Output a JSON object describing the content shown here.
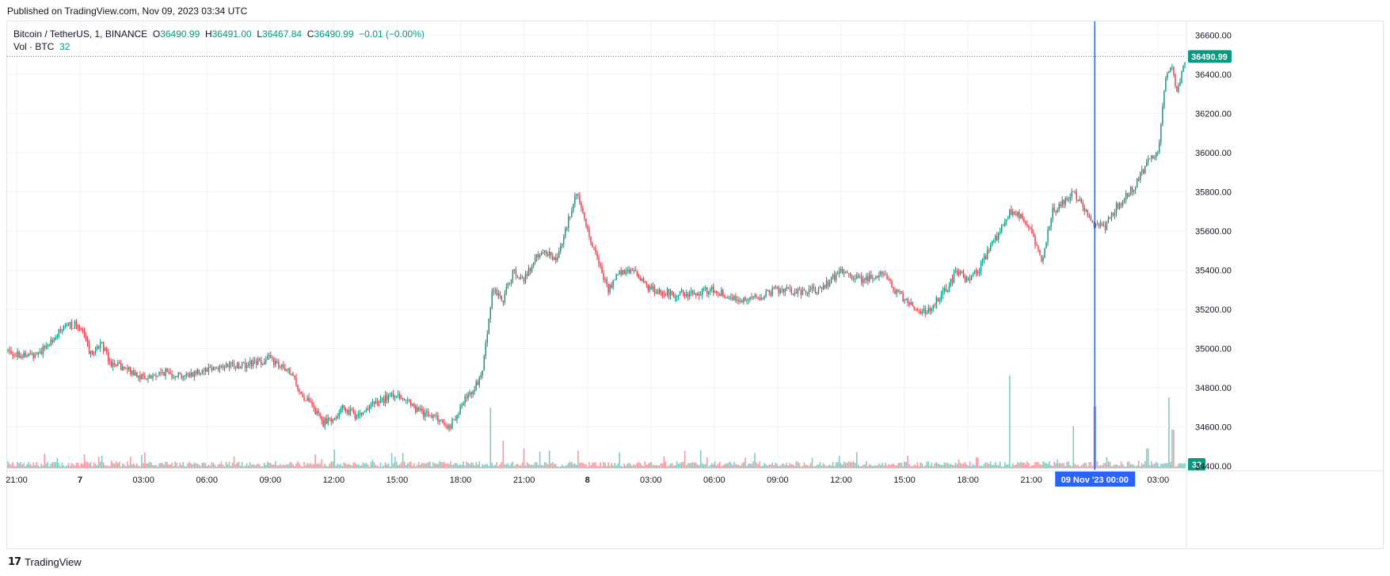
{
  "header": {
    "published": "Published on TradingView.com, Nov 09, 2023 03:34 UTC"
  },
  "legend": {
    "symbol": "Bitcoin / TetherUS, 1, BINANCE",
    "o_label": "O",
    "o_value": "36490.99",
    "h_label": "H",
    "h_value": "36491.00",
    "l_label": "L",
    "l_value": "36467.84",
    "c_label": "C",
    "c_value": "36490.99",
    "change": "−0.01 (−0.00%)",
    "vol_label": "Vol · BTC",
    "vol_value": "32"
  },
  "footer": {
    "brand": "TradingView",
    "logo_mark": "17"
  },
  "colors": {
    "up": "#089981",
    "down": "#f23645",
    "crosshair": "#2962ff",
    "grid": "#f0f3fa"
  },
  "chart_data": {
    "type": "candlestick",
    "y_ticks": [
      "36600.00",
      "36400.00",
      "36200.00",
      "36000.00",
      "35800.00",
      "35600.00",
      "35400.00",
      "35200.00",
      "35000.00",
      "34800.00",
      "34600.00",
      "34400.00"
    ],
    "ylim": [
      34380,
      36670
    ],
    "x_ticks": [
      "21:00",
      "7",
      "03:00",
      "06:00",
      "09:00",
      "12:00",
      "15:00",
      "18:00",
      "21:00",
      "8",
      "03:00",
      "06:00",
      "09:00",
      "12:00",
      "15:00",
      "18:00",
      "21:00",
      "03:00"
    ],
    "x_tick_hours": [
      0,
      3,
      6,
      9,
      12,
      15,
      18,
      21,
      24,
      27,
      30,
      33,
      36,
      39,
      42,
      45,
      48,
      54
    ],
    "x_range_hours": [
      -0.45,
      55.3
    ],
    "last_price_label": "36490.99",
    "last_price": 36490.99,
    "crosshair_label": "09 Nov '23   00:00",
    "crosshair_hour": 51,
    "volume_label": "32",
    "price_path": [
      [
        -0.45,
        34990
      ],
      [
        0.5,
        34960
      ],
      [
        1.2,
        34990
      ],
      [
        2.0,
        35080
      ],
      [
        2.5,
        35120
      ],
      [
        3.0,
        35120
      ],
      [
        3.5,
        34970
      ],
      [
        4.0,
        35030
      ],
      [
        4.5,
        34920
      ],
      [
        5.0,
        34900
      ],
      [
        5.5,
        34880
      ],
      [
        6.0,
        34850
      ],
      [
        6.5,
        34860
      ],
      [
        7.0,
        34880
      ],
      [
        8.0,
        34860
      ],
      [
        9.0,
        34900
      ],
      [
        10.0,
        34910
      ],
      [
        11.0,
        34920
      ],
      [
        12.0,
        34950
      ],
      [
        12.5,
        34900
      ],
      [
        13.0,
        34870
      ],
      [
        13.5,
        34760
      ],
      [
        14.0,
        34700
      ],
      [
        14.5,
        34620
      ],
      [
        15.0,
        34650
      ],
      [
        15.5,
        34700
      ],
      [
        16.0,
        34660
      ],
      [
        17.0,
        34720
      ],
      [
        18.0,
        34770
      ],
      [
        18.5,
        34730
      ],
      [
        19.0,
        34680
      ],
      [
        20.0,
        34640
      ],
      [
        20.5,
        34600
      ],
      [
        21.0,
        34700
      ],
      [
        21.5,
        34780
      ],
      [
        22.0,
        34850
      ],
      [
        22.5,
        35300
      ],
      [
        23.0,
        35250
      ],
      [
        23.5,
        35400
      ],
      [
        24.0,
        35350
      ],
      [
        24.5,
        35450
      ],
      [
        25.0,
        35500
      ],
      [
        25.5,
        35450
      ],
      [
        26.0,
        35620
      ],
      [
        26.5,
        35800
      ],
      [
        27.0,
        35600
      ],
      [
        27.5,
        35450
      ],
      [
        28.0,
        35300
      ],
      [
        28.5,
        35380
      ],
      [
        29.0,
        35400
      ],
      [
        29.5,
        35360
      ],
      [
        30.0,
        35300
      ],
      [
        31.0,
        35280
      ],
      [
        32.0,
        35280
      ],
      [
        33.0,
        35300
      ],
      [
        34.0,
        35250
      ],
      [
        35.0,
        35260
      ],
      [
        36.0,
        35300
      ],
      [
        37.0,
        35290
      ],
      [
        38.0,
        35300
      ],
      [
        38.5,
        35350
      ],
      [
        39.0,
        35400
      ],
      [
        40.0,
        35350
      ],
      [
        41.0,
        35380
      ],
      [
        41.5,
        35300
      ],
      [
        42.0,
        35250
      ],
      [
        43.0,
        35180
      ],
      [
        43.5,
        35250
      ],
      [
        44.0,
        35300
      ],
      [
        44.5,
        35400
      ],
      [
        45.0,
        35350
      ],
      [
        45.5,
        35400
      ],
      [
        46.0,
        35500
      ],
      [
        46.5,
        35600
      ],
      [
        47.0,
        35700
      ],
      [
        47.5,
        35680
      ],
      [
        48.0,
        35600
      ],
      [
        48.5,
        35450
      ],
      [
        49.0,
        35700
      ],
      [
        49.5,
        35750
      ],
      [
        50.0,
        35800
      ],
      [
        50.5,
        35720
      ],
      [
        51.0,
        35620
      ],
      [
        51.5,
        35620
      ],
      [
        52.0,
        35720
      ],
      [
        52.5,
        35780
      ],
      [
        53.0,
        35850
      ],
      [
        53.5,
        35950
      ],
      [
        54.0,
        36000
      ],
      [
        54.3,
        36350
      ],
      [
        54.6,
        36450
      ],
      [
        54.9,
        36300
      ],
      [
        55.0,
        36350
      ],
      [
        55.3,
        36490.99
      ]
    ],
    "volume_spikes": [
      [
        22.4,
        0.55
      ],
      [
        23.0,
        0.25
      ],
      [
        24.0,
        0.18
      ],
      [
        25.2,
        0.16
      ],
      [
        47.0,
        0.84
      ],
      [
        50.0,
        0.38
      ],
      [
        51.0,
        0.56
      ],
      [
        53.5,
        0.18
      ],
      [
        54.5,
        0.64
      ],
      [
        54.7,
        0.35
      ]
    ]
  }
}
